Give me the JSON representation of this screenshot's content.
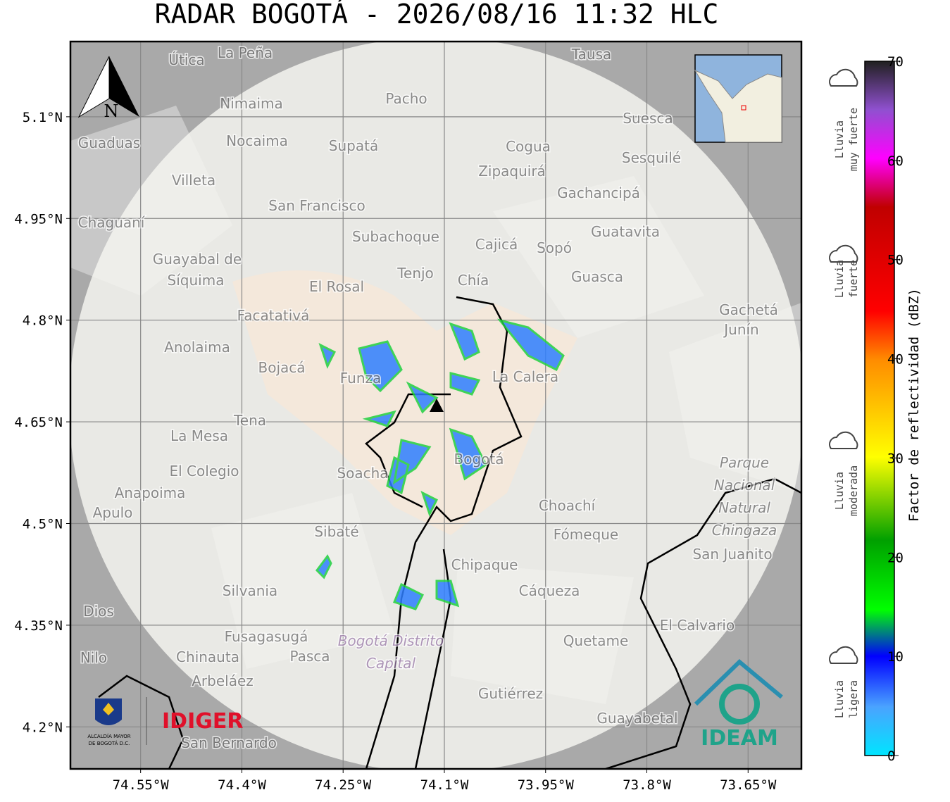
{
  "title": "RADAR BOGOTÁ - 2026/08/16 11:32 HLC",
  "map": {
    "xlim": [
      -74.654,
      -73.571
    ],
    "ylim": [
      4.138,
      5.211
    ],
    "lon_ticks": [
      {
        "value": -74.55,
        "label": "74.55°W"
      },
      {
        "value": -74.4,
        "label": "74.4°W"
      },
      {
        "value": -74.25,
        "label": "74.25°W"
      },
      {
        "value": -74.1,
        "label": "74.1°W"
      },
      {
        "value": -73.95,
        "label": "73.95°W"
      },
      {
        "value": -73.8,
        "label": "73.8°W"
      },
      {
        "value": -73.65,
        "label": "73.65°W"
      }
    ],
    "lat_ticks": [
      {
        "value": 5.1,
        "label": "5.1°N"
      },
      {
        "value": 4.95,
        "label": "4.95°N"
      },
      {
        "value": 4.8,
        "label": "4.8°N"
      },
      {
        "value": 4.65,
        "label": "4.65°N"
      },
      {
        "value": 4.5,
        "label": "4.5°N"
      },
      {
        "value": 4.35,
        "label": "4.35°N"
      },
      {
        "value": 4.2,
        "label": "4.2°N"
      }
    ],
    "north": "N",
    "places": [
      "La Peña",
      "Útica",
      "Tausa",
      "Pacho",
      "Nimaima",
      "Suesca",
      "Guaduas",
      "Nocaima",
      "Supatá",
      "Cogua",
      "Sesquilé",
      "Zipaquirá",
      "Villeta",
      "Gachancipá",
      "San Francisco",
      "Chaguaní",
      "Guatavita",
      "Subachoque",
      "Cajicá",
      "Sopó",
      "Guayabal de",
      "Síquima",
      "Tenjo",
      "Chía",
      "Guasca",
      "El Rosal",
      "Facatativá",
      "Gachetá",
      "Junín",
      "Anolaima",
      "Bojacá",
      "Funza",
      "La Calera",
      "Tena",
      "La Mesa",
      "Soacha",
      "Bogotá",
      "El Colegio",
      "Anapoima",
      "Apulo",
      "Choachí",
      "Sibaté",
      "Fómeque",
      "San Juanito",
      "Chipaque",
      "Silvania",
      "Cáqueza",
      "El Calvario",
      "Dios",
      "Fusagasugá",
      "Quetame",
      "Nilo",
      "Chinauta",
      "Pasca",
      "Arbeláez",
      "Gutiérrez",
      "Guayabetal",
      "San Bernardo"
    ],
    "park": [
      "Parque",
      "Nacional",
      "Natural",
      "Chingaza"
    ],
    "district": [
      "Bogotá Distrito",
      "Capital"
    ]
  },
  "colorbar": {
    "label": "Factor de reflectividad (dBZ)",
    "lim": [
      0,
      70
    ],
    "ticks": [
      0,
      10,
      20,
      30,
      40,
      50,
      60,
      70
    ]
  },
  "rain_classes": [
    {
      "lines": [
        "Lluvia",
        "muy fuerte"
      ]
    },
    {
      "lines": [
        "Lluvia",
        "fuerte"
      ]
    },
    {
      "lines": [
        "Lluvia",
        "moderada"
      ]
    },
    {
      "lines": [
        "Lluvia",
        "ligera"
      ]
    }
  ],
  "logos": {
    "alcaldia": [
      "ALCALDÍA MAYOR",
      "DE BOGOTÁ D.C."
    ],
    "idiger": "IDIGER",
    "ideam": "IDEAM"
  }
}
